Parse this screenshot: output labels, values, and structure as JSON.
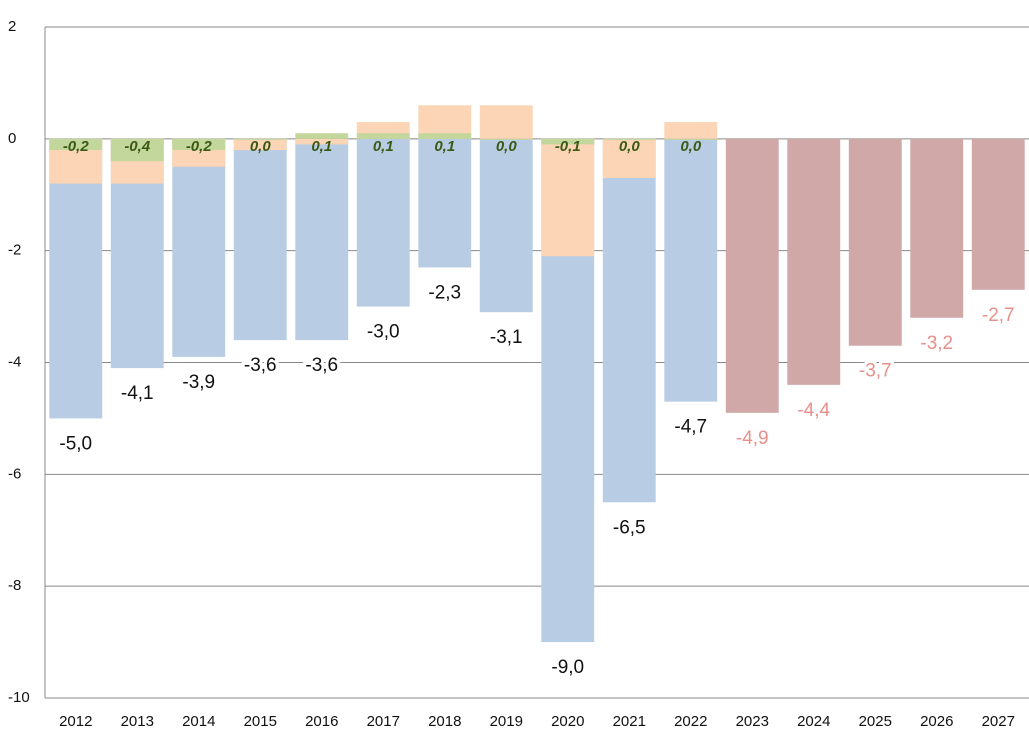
{
  "chart_data": {
    "type": "bar",
    "categories": [
      "2012",
      "2013",
      "2014",
      "2015",
      "2016",
      "2017",
      "2018",
      "2019",
      "2020",
      "2021",
      "2022",
      "2023",
      "2024",
      "2025",
      "2026",
      "2027"
    ],
    "series": [
      {
        "color": "#b8cce4",
        "values": [
          -5.0,
          -4.1,
          -3.9,
          -3.6,
          -3.6,
          -3.0,
          -2.3,
          -3.1,
          -9.0,
          -6.5,
          -4.7,
          null,
          null,
          null,
          null,
          null
        ],
        "value_labels": [
          "-5,0",
          "-4,1",
          "-3,9",
          "-3,6",
          "-3,6",
          "-3,0",
          "-2,3",
          "-3,1",
          "-9,0",
          "-6,5",
          "-4,7",
          null,
          null,
          null,
          null,
          null
        ]
      },
      {
        "color": "#fbd5b5",
        "values": [
          -0.8,
          -0.8,
          -0.5,
          -0.2,
          -0.1,
          0.3,
          0.6,
          0.6,
          -2.1,
          -0.7,
          0.3,
          null,
          null,
          null,
          null,
          null
        ]
      },
      {
        "color": "#c3d69b",
        "values": [
          -0.2,
          -0.4,
          -0.2,
          0.0,
          0.1,
          0.1,
          0.1,
          0.0,
          -0.1,
          0.0,
          0.0,
          null,
          null,
          null,
          null,
          null
        ],
        "value_labels": [
          "-0,2",
          "-0,4",
          "-0,2",
          "0,0",
          "0,1",
          "0,1",
          "0,1",
          "0,0",
          "-0,1",
          "0,0",
          "0,0",
          null,
          null,
          null,
          null,
          null
        ]
      },
      {
        "color": "#d0a8a8",
        "values": [
          null,
          null,
          null,
          null,
          null,
          null,
          null,
          null,
          null,
          null,
          null,
          -4.9,
          -4.4,
          -3.7,
          -3.2,
          -2.7
        ],
        "value_labels": [
          null,
          null,
          null,
          null,
          null,
          null,
          null,
          null,
          null,
          null,
          null,
          "-4,9",
          "-4,4",
          "-3,7",
          "-3,2",
          "-2,7"
        ]
      }
    ],
    "ylim": [
      -10,
      2
    ],
    "yticks": [
      -10,
      -8,
      -6,
      -4,
      -2,
      0,
      2
    ],
    "grid": true
  }
}
